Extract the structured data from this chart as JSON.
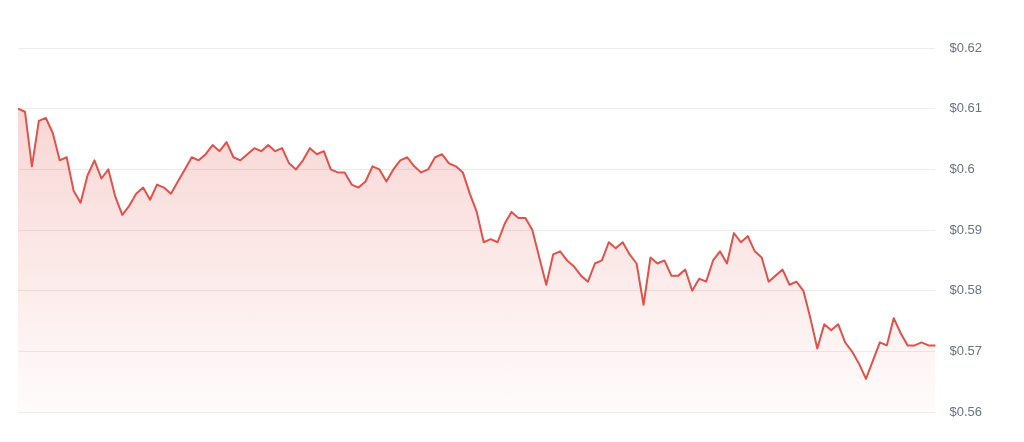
{
  "chart_data": {
    "type": "area",
    "categories": [
      null,
      null,
      null,
      null,
      null,
      null,
      null,
      null,
      null,
      null,
      null,
      null,
      null,
      null,
      null,
      null,
      null,
      null,
      null,
      null,
      null,
      null,
      null,
      null,
      null,
      null,
      null,
      null,
      null,
      null,
      null,
      null,
      null,
      null,
      null,
      null,
      null,
      null,
      null,
      null,
      null,
      null,
      null,
      null,
      null,
      null,
      null,
      null,
      null,
      null,
      null,
      null,
      null,
      null,
      null,
      null,
      null,
      null,
      null,
      null,
      null,
      null,
      null,
      null,
      null,
      null,
      null,
      null,
      null,
      null,
      null,
      null,
      null,
      null,
      null,
      null,
      null,
      null,
      null,
      null,
      null,
      null,
      null,
      null,
      null,
      null,
      null,
      null,
      null,
      null,
      null,
      null,
      null,
      null,
      null,
      null,
      null,
      null,
      null,
      null,
      null,
      null,
      null,
      null,
      null,
      null,
      null,
      null,
      null,
      null,
      null,
      null,
      null,
      null,
      null,
      null,
      null,
      null,
      null,
      null,
      null,
      null,
      null,
      null,
      null,
      null,
      null,
      null,
      null,
      null,
      null,
      null,
      null
    ],
    "series": [
      {
        "color": "#e0524a",
        "values": [
          0.61,
          0.6095,
          0.6005,
          0.608,
          0.6085,
          0.606,
          0.6015,
          0.602,
          0.5965,
          0.5945,
          0.599,
          0.6015,
          0.5985,
          0.6,
          0.5955,
          0.5925,
          0.594,
          0.596,
          0.597,
          0.595,
          0.5975,
          0.597,
          0.596,
          0.598,
          0.6,
          0.602,
          0.6015,
          0.6025,
          0.604,
          0.603,
          0.6045,
          0.602,
          0.6015,
          0.6025,
          0.6035,
          0.603,
          0.604,
          0.603,
          0.6035,
          0.601,
          0.6,
          0.6015,
          0.6035,
          0.6025,
          0.603,
          0.6,
          0.5995,
          0.5995,
          0.5975,
          0.597,
          0.598,
          0.6005,
          0.6,
          0.598,
          0.6,
          0.6015,
          0.602,
          0.6005,
          0.5995,
          0.6,
          0.602,
          0.6025,
          0.601,
          0.6005,
          0.5995,
          0.596,
          0.593,
          0.588,
          0.5885,
          0.588,
          0.591,
          0.593,
          0.592,
          0.592,
          0.59,
          0.5855,
          0.581,
          0.586,
          0.5865,
          0.585,
          0.584,
          0.5825,
          0.5815,
          0.5845,
          0.585,
          0.588,
          0.587,
          0.588,
          0.586,
          0.5845,
          0.5777,
          0.5855,
          0.5845,
          0.585,
          0.5825,
          0.5825,
          0.5835,
          0.58,
          0.582,
          0.5815,
          0.585,
          0.5865,
          0.5845,
          0.5895,
          0.588,
          0.589,
          0.5865,
          0.5855,
          0.5815,
          0.5825,
          0.5835,
          0.581,
          0.5815,
          0.58,
          0.5755,
          0.5705,
          0.5745,
          0.5735,
          0.5745,
          0.5715,
          0.57,
          0.568,
          0.5655,
          0.5685,
          0.5715,
          0.571,
          0.5755,
          0.573,
          0.571,
          0.571,
          0.5715,
          0.571,
          0.571
        ]
      }
    ],
    "ylim": [
      0.56,
      0.62
    ],
    "yticks": [
      {
        "value": 0.56,
        "label": "$0.56"
      },
      {
        "value": 0.57,
        "label": "$0.57"
      },
      {
        "value": 0.58,
        "label": "$0.58"
      },
      {
        "value": 0.59,
        "label": "$0.59"
      },
      {
        "value": 0.6,
        "label": "$0.6"
      },
      {
        "value": 0.61,
        "label": "$0.61"
      },
      {
        "value": 0.62,
        "label": "$0.62"
      }
    ],
    "grid": "y",
    "legend": false,
    "marker": "none",
    "line_style": "solid"
  }
}
